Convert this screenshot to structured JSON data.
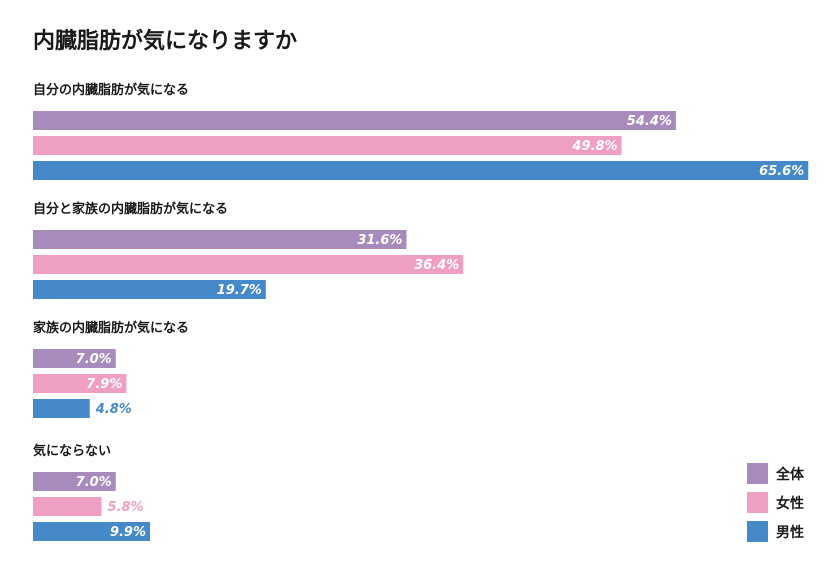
{
  "chart_data": {
    "type": "bar",
    "orientation": "horizontal",
    "title": "内臓脂肪が気になりますか",
    "categories": [
      "自分の内臓脂肪が気になる",
      "自分と家族の内臓脂肪が気になる",
      "家族の内臓脂肪が気になる",
      "気にならない"
    ],
    "series": [
      {
        "name": "全体",
        "color": "#a88bbd",
        "values": [
          54.4,
          31.6,
          7.0,
          7.0
        ]
      },
      {
        "name": "女性",
        "color": "#ef9fc4",
        "values": [
          49.8,
          36.4,
          7.9,
          5.8
        ]
      },
      {
        "name": "男性",
        "color": "#4589c9",
        "values": [
          65.6,
          19.7,
          4.8,
          9.9
        ]
      }
    ],
    "unit": "%",
    "xlim": [
      0,
      66
    ],
    "legend_position": "bottom-right",
    "grid": false
  }
}
